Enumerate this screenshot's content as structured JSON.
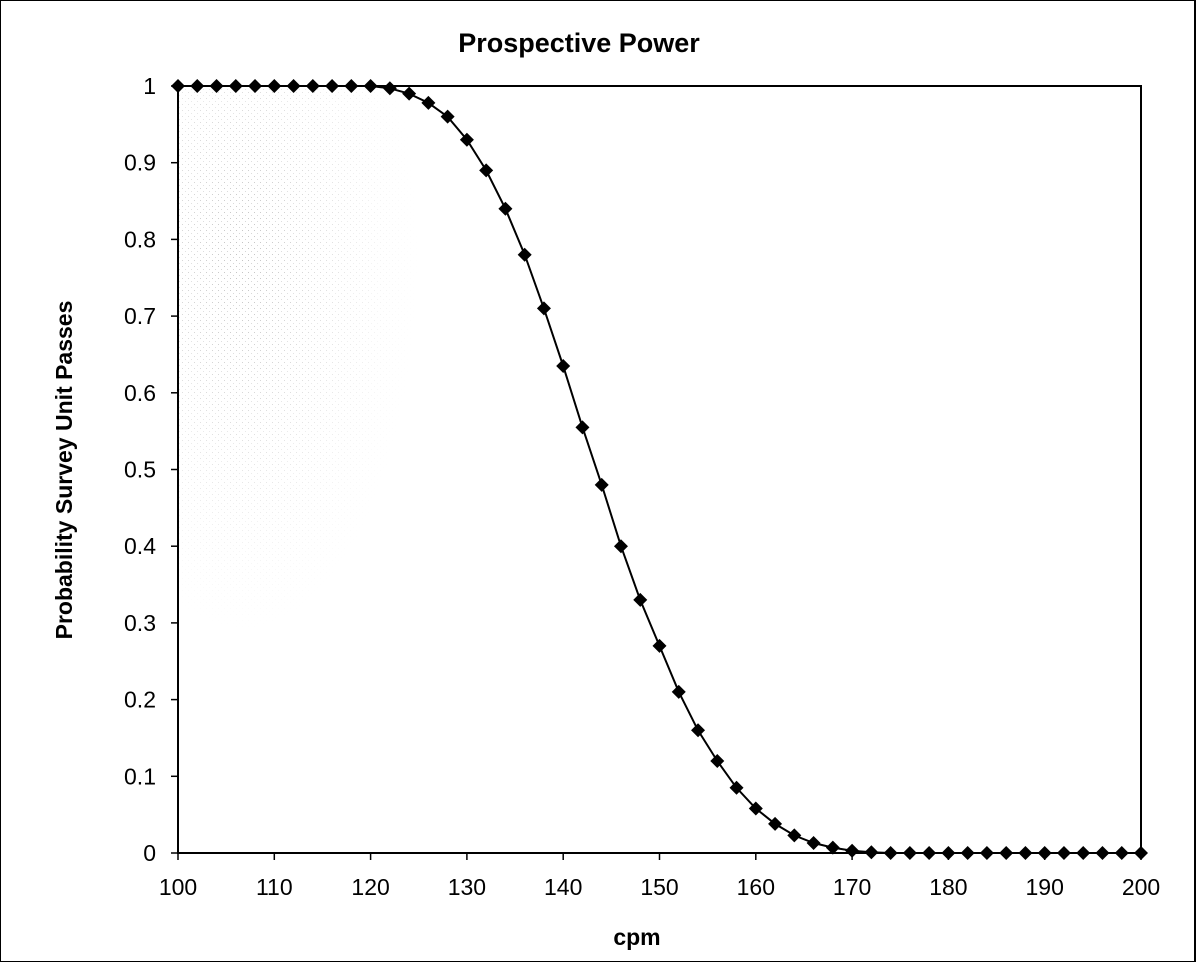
{
  "chart_data": {
    "type": "line",
    "title": "Prospective Power",
    "xlabel": "cpm",
    "ylabel": "Probability Survey Unit Passes",
    "xlim": [
      100,
      200
    ],
    "ylim": [
      0,
      1
    ],
    "x_ticks": [
      "100",
      "110",
      "120",
      "130",
      "140",
      "150",
      "160",
      "170",
      "180",
      "190",
      "200"
    ],
    "y_ticks": [
      "0",
      "0.1",
      "0.2",
      "0.3",
      "0.4",
      "0.5",
      "0.6",
      "0.7",
      "0.8",
      "0.9",
      "1"
    ],
    "grid": false,
    "legend": "none",
    "marker": "diamond",
    "line_color": "#000000",
    "series": [
      {
        "x": [
          100,
          102,
          104,
          106,
          108,
          110,
          112,
          114,
          116,
          118,
          120,
          122,
          124,
          126,
          128,
          130,
          132,
          134,
          136,
          138,
          140,
          142,
          144,
          146,
          148,
          150,
          152,
          154,
          156,
          158,
          160,
          162,
          164,
          166,
          168,
          170,
          172,
          174,
          176,
          178,
          180,
          182,
          184,
          186,
          188,
          190,
          192,
          194,
          196,
          198,
          200
        ],
        "values": [
          1,
          1,
          1,
          1,
          1,
          1,
          1,
          1,
          1,
          1,
          1,
          0.997,
          0.99,
          0.978,
          0.96,
          0.93,
          0.89,
          0.84,
          0.78,
          0.71,
          0.635,
          0.555,
          0.48,
          0.4,
          0.33,
          0.27,
          0.21,
          0.16,
          0.12,
          0.085,
          0.058,
          0.038,
          0.023,
          0.013,
          0.007,
          0.003,
          0.001,
          0,
          0,
          0,
          0,
          0,
          0,
          0,
          0,
          0,
          0,
          0,
          0,
          0,
          0
        ]
      }
    ]
  }
}
